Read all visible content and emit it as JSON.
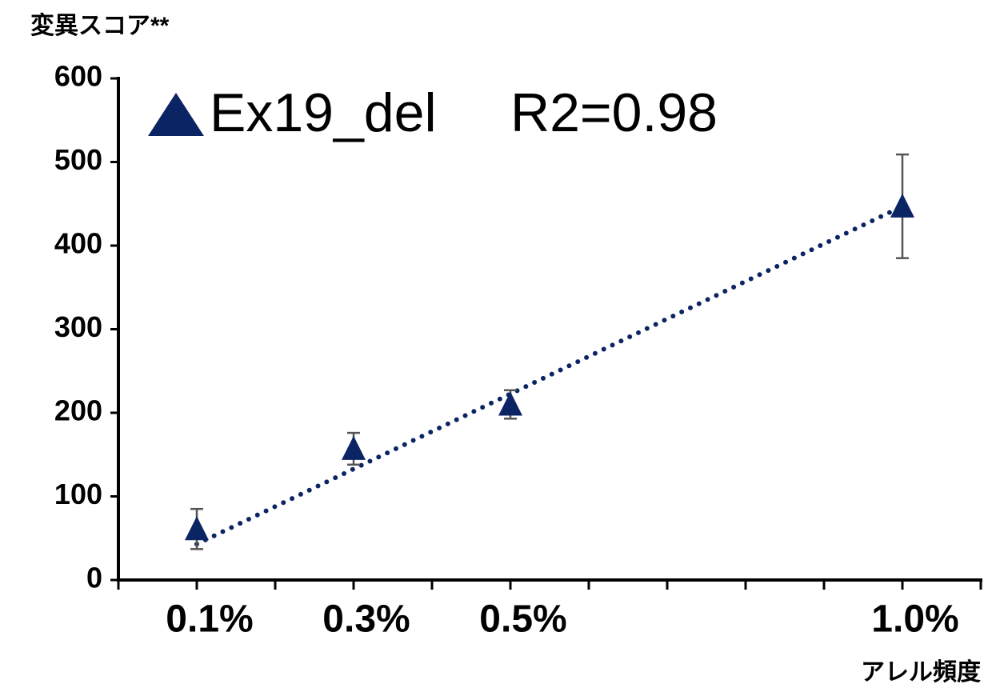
{
  "chart_data": {
    "type": "scatter",
    "y_axis_title": "変異スコア**",
    "x_axis_title": "アレル頻度",
    "annotation": "R2=0.98",
    "series": [
      {
        "name": "Ex19_del",
        "color": "#0b2463",
        "x": [
          0.1,
          0.3,
          0.5,
          1.0
        ],
        "values": [
          61,
          157,
          210,
          447
        ],
        "errors": [
          24,
          19,
          17,
          62
        ]
      }
    ],
    "trendline": {
      "x": [
        0.1,
        1.0
      ],
      "values": [
        43,
        447
      ],
      "color": "#0b2463"
    },
    "error_color": "#555555",
    "xlim": [
      0,
      1.1
    ],
    "xticks": [
      {
        "value": 0.1,
        "label": "0.1%"
      },
      {
        "value": 0.3,
        "label": "0.3%"
      },
      {
        "value": 0.5,
        "label": "0.5%"
      },
      {
        "value": 1.0,
        "label": "1.0%"
      }
    ],
    "x_minor_ticks": [
      0,
      0.2,
      0.4,
      0.6,
      0.7,
      0.8,
      0.9,
      1.1
    ],
    "ylim": [
      0,
      600
    ],
    "yticks": [
      0,
      100,
      200,
      300,
      400,
      500,
      600
    ],
    "grid": false
  }
}
